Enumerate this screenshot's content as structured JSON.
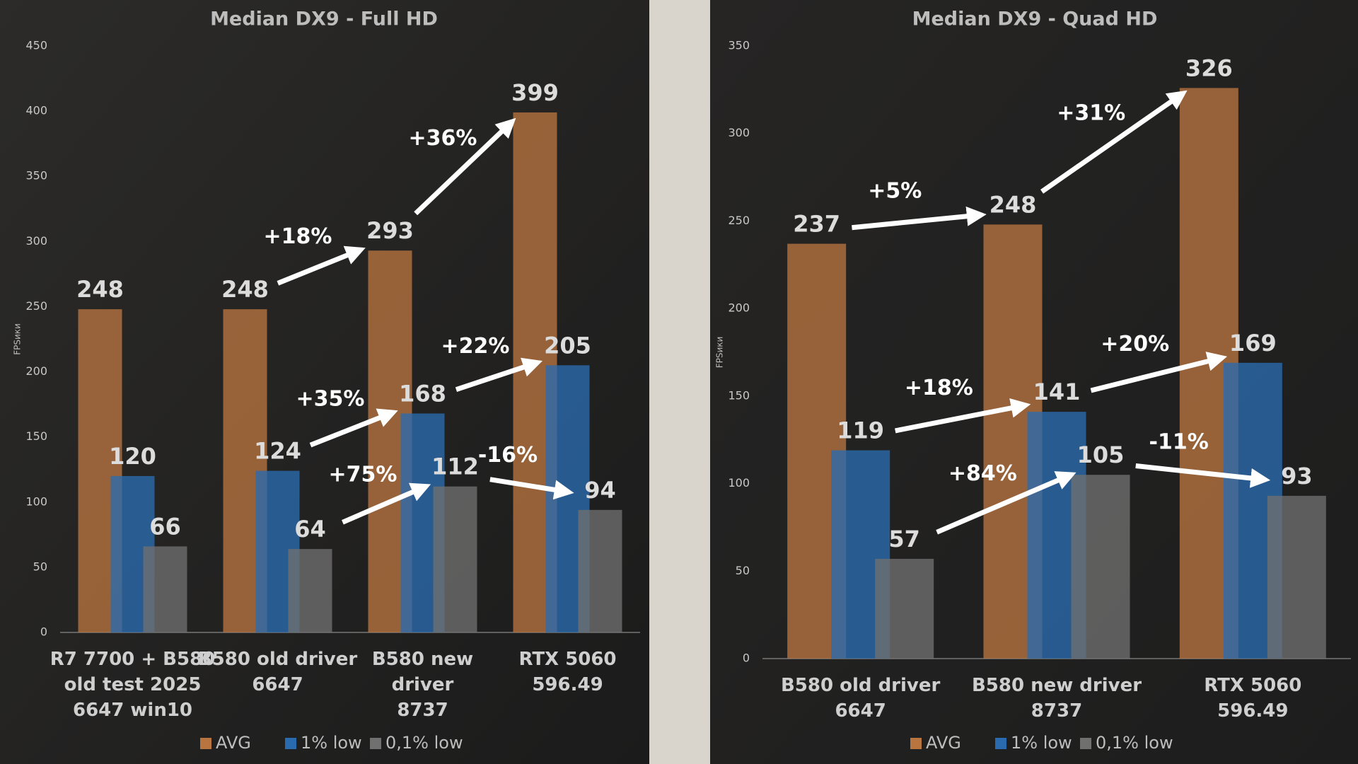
{
  "chart_data": [
    {
      "type": "bar",
      "title": "Median DX9 - Full HD",
      "y_label": "FPSики",
      "categories": [
        "R7 7700 + B580\nold test 2025\n6647 win10",
        "B580 old driver\n6647",
        "B580 new\ndriver\n8737",
        "RTX 5060\n596.49"
      ],
      "series": [
        {
          "name": "AVG",
          "color": "#b97540",
          "values": [
            248,
            248,
            293,
            399
          ]
        },
        {
          "name": "1% low",
          "color": "#2a6bb0",
          "values": [
            120,
            124,
            168,
            205
          ]
        },
        {
          "name": "0,1% low",
          "color": "#707070",
          "values": [
            66,
            64,
            112,
            94
          ]
        }
      ],
      "ylim": [
        0,
        450
      ],
      "yticks": [
        0,
        50,
        100,
        150,
        200,
        250,
        300,
        350,
        400,
        450
      ],
      "annotations": [
        "+18%",
        "+36%",
        "+35%",
        "+22%",
        "+75%",
        "-16%"
      ],
      "legend": "bottom"
    },
    {
      "type": "bar",
      "title": "Median DX9 - Quad HD",
      "y_label": "FPSики",
      "categories": [
        "B580 old driver\n6647",
        "B580 new driver\n8737",
        "RTX 5060\n596.49"
      ],
      "series": [
        {
          "name": "AVG",
          "color": "#b97540",
          "values": [
            237,
            248,
            326
          ]
        },
        {
          "name": "1% low",
          "color": "#2a6bb0",
          "values": [
            119,
            141,
            169
          ]
        },
        {
          "name": "0,1% low",
          "color": "#707070",
          "values": [
            57,
            105,
            93
          ]
        }
      ],
      "ylim": [
        0,
        350
      ],
      "yticks": [
        0,
        50,
        100,
        150,
        200,
        250,
        300,
        350
      ],
      "annotations": [
        "+5%",
        "+31%",
        "+18%",
        "+20%",
        "+84%",
        "-11%"
      ],
      "legend": "bottom"
    }
  ]
}
